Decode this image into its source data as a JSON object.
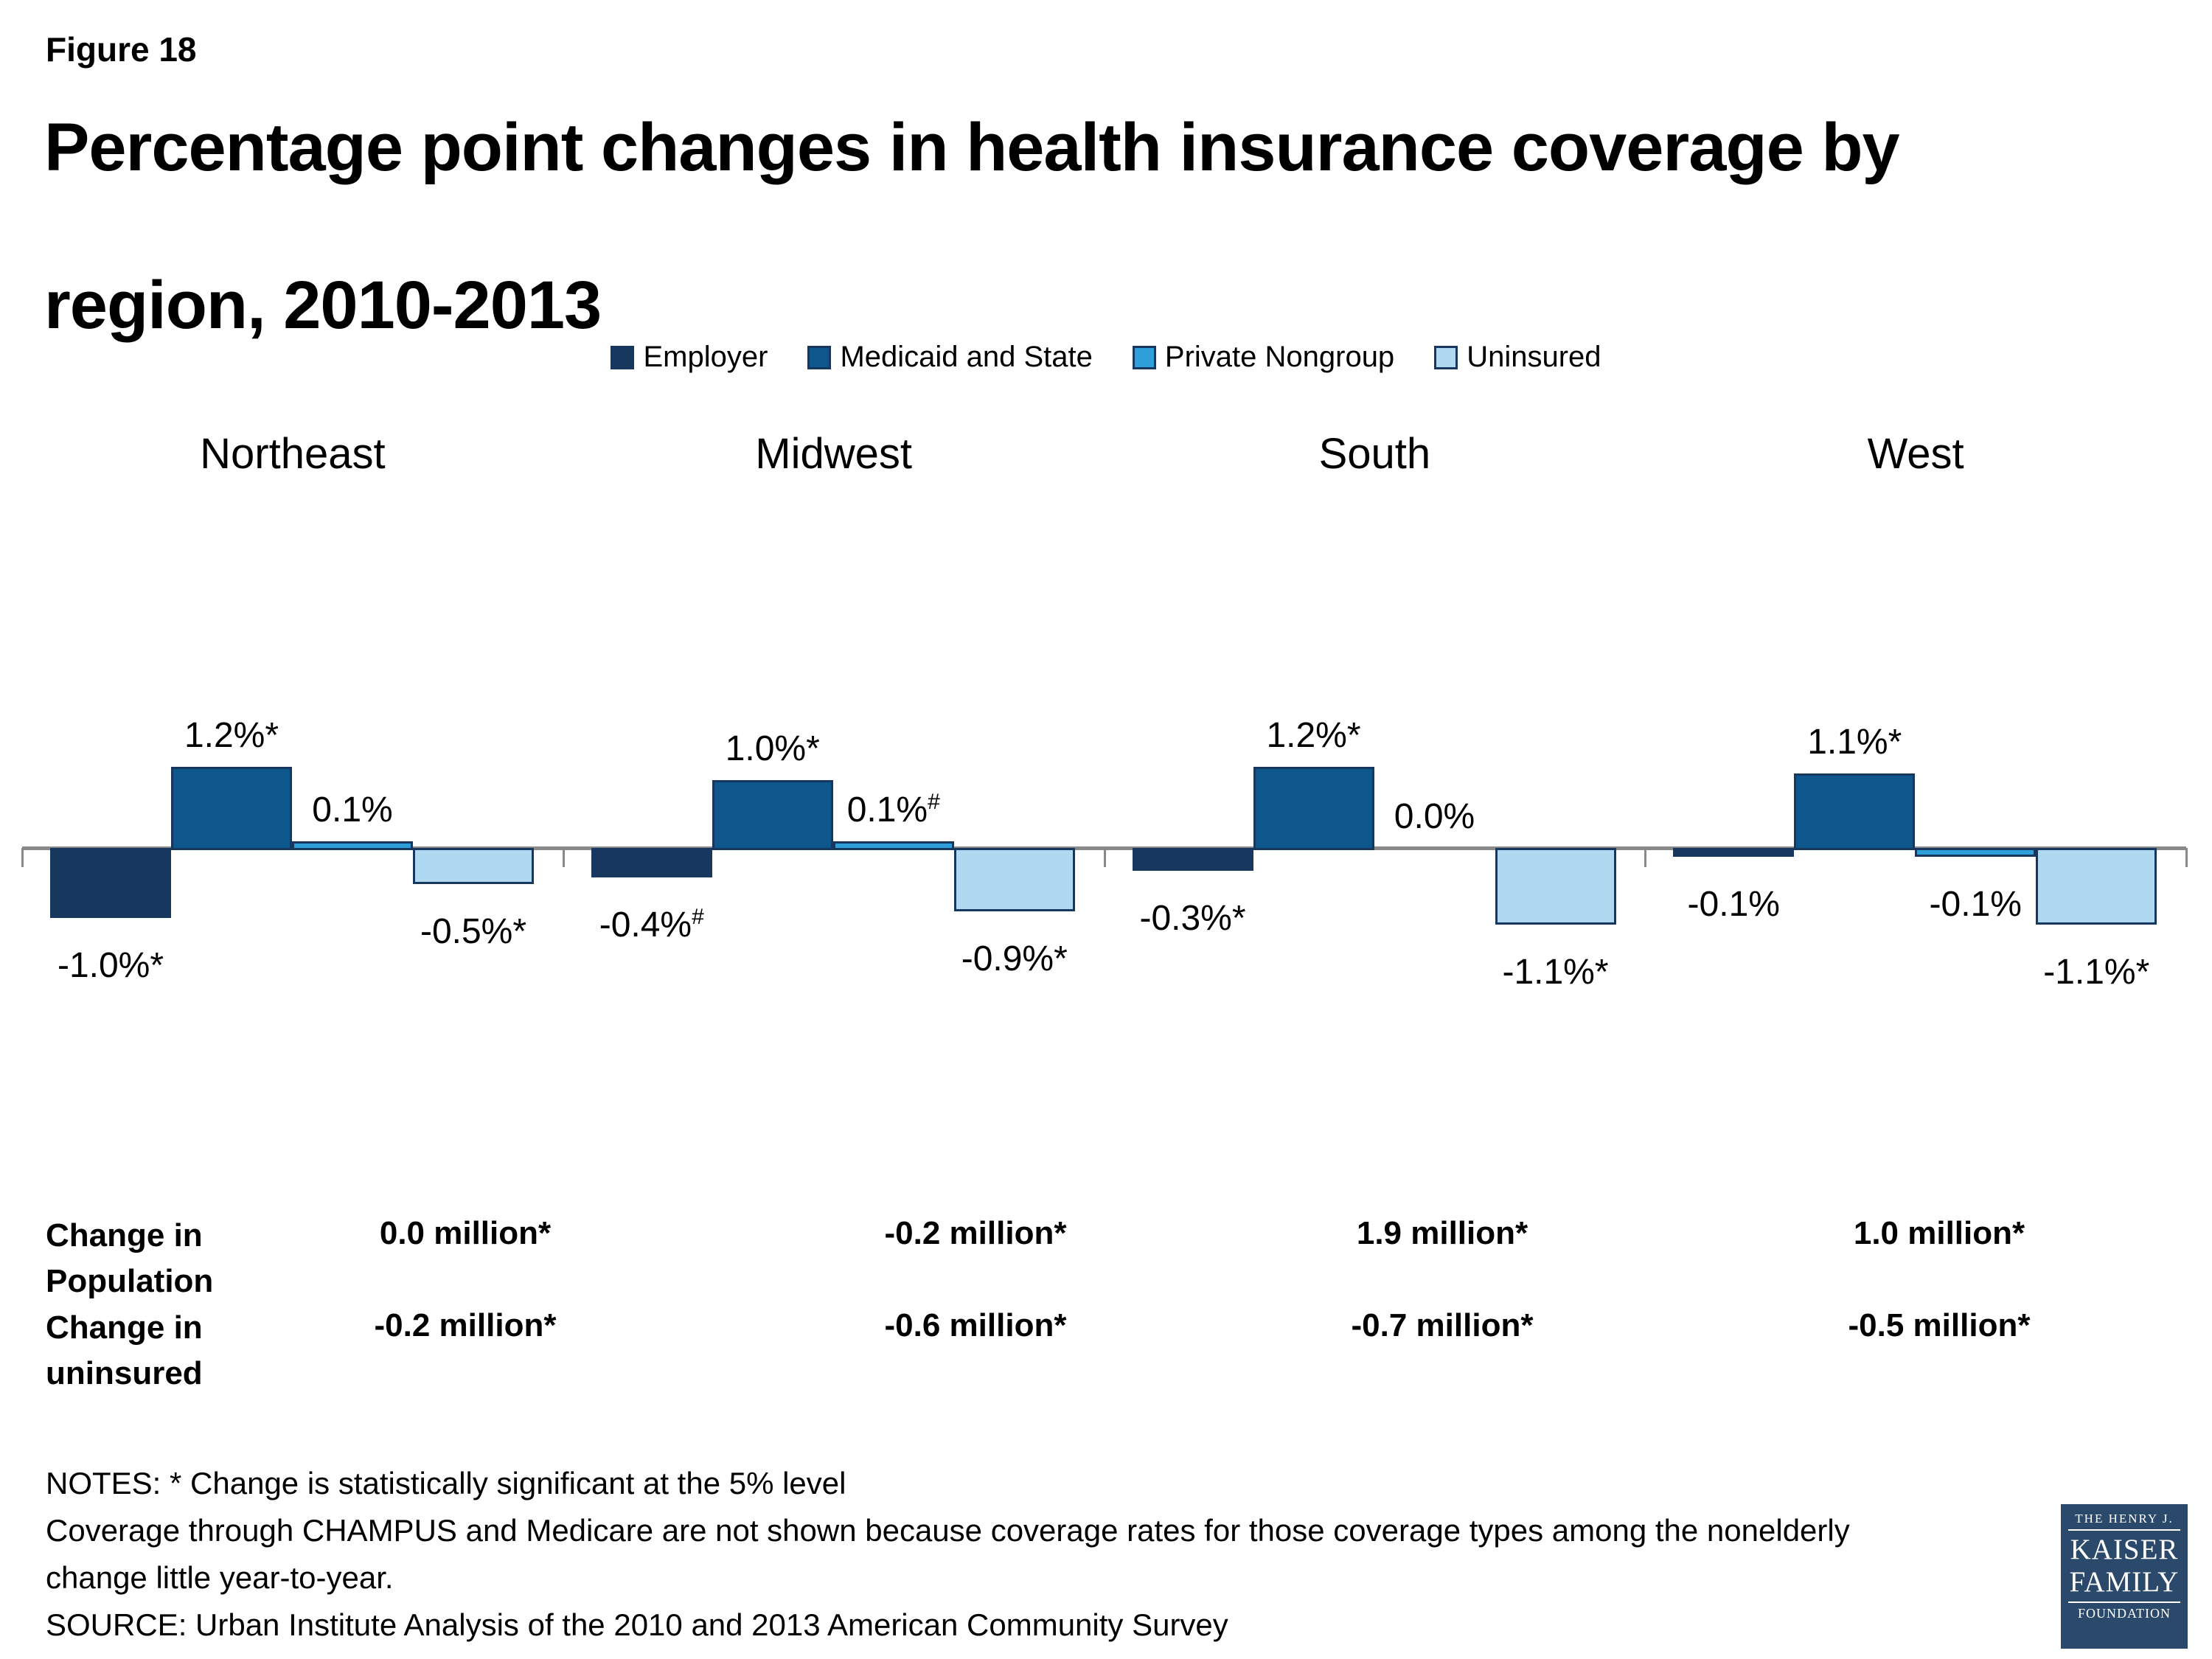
{
  "figure_label": "Figure 18",
  "title_line1": "Percentage point changes in health insurance coverage by",
  "title_line2": "region, 2010-2013",
  "colors": {
    "employer": "#17375E",
    "medicaid_and_state": "#0D578C",
    "private_nongroup": "#2F9FDA",
    "uninsured": "#AFD9F0",
    "bar_border": "#17375E",
    "axis": "#898989",
    "logo_background": "#2B4A6B"
  },
  "legend": [
    {
      "label": "Employer",
      "color": "#17375E"
    },
    {
      "label": "Medicaid and State",
      "color": "#0D578C"
    },
    {
      "label": "Private Nongroup",
      "color": "#2F9FDA"
    },
    {
      "label": "Uninsured",
      "color": "#AFD9F0"
    }
  ],
  "chart_data": {
    "type": "bar",
    "units": "percentage points",
    "categories": [
      "Northeast",
      "Midwest",
      "South",
      "West"
    ],
    "series_names": [
      "Employer",
      "Medicaid and State",
      "Private Nongroup",
      "Uninsured"
    ],
    "ylim": [
      -1.5,
      1.5
    ],
    "grid": false,
    "legend_position": "top",
    "groups": [
      {
        "region": "Northeast",
        "bars": [
          {
            "series": "Employer",
            "value": -1.0,
            "label": "-1.0%*",
            "sup": "",
            "color": "#17375E"
          },
          {
            "series": "Medicaid and State",
            "value": 1.2,
            "label": "1.2%*",
            "sup": "",
            "color": "#0D578C"
          },
          {
            "series": "Private Nongroup",
            "value": 0.1,
            "label": "0.1%",
            "sup": "",
            "color": "#2F9FDA"
          },
          {
            "series": "Uninsured",
            "value": -0.5,
            "label": "-0.5%*",
            "sup": "",
            "color": "#AFD9F0"
          }
        ]
      },
      {
        "region": "Midwest",
        "bars": [
          {
            "series": "Employer",
            "value": -0.4,
            "label": "-0.4%",
            "sup": "#",
            "color": "#17375E"
          },
          {
            "series": "Medicaid and State",
            "value": 1.0,
            "label": "1.0%*",
            "sup": "",
            "color": "#0D578C"
          },
          {
            "series": "Private Nongroup",
            "value": 0.1,
            "label": "0.1%",
            "sup": "#",
            "color": "#2F9FDA"
          },
          {
            "series": "Uninsured",
            "value": -0.9,
            "label": "-0.9%*",
            "sup": "",
            "color": "#AFD9F0"
          }
        ]
      },
      {
        "region": "South",
        "bars": [
          {
            "series": "Employer",
            "value": -0.3,
            "label": "-0.3%*",
            "sup": "",
            "color": "#17375E"
          },
          {
            "series": "Medicaid and State",
            "value": 1.2,
            "label": "1.2%*",
            "sup": "",
            "color": "#0D578C"
          },
          {
            "series": "Private Nongroup",
            "value": 0.0,
            "label": "0.0%",
            "sup": "",
            "color": "#2F9FDA"
          },
          {
            "series": "Uninsured",
            "value": -1.1,
            "label": "-1.1%*",
            "sup": "",
            "color": "#AFD9F0"
          }
        ]
      },
      {
        "region": "West",
        "bars": [
          {
            "series": "Employer",
            "value": -0.1,
            "label": "-0.1%",
            "sup": "",
            "color": "#17375E"
          },
          {
            "series": "Medicaid and State",
            "value": 1.1,
            "label": "1.1%*",
            "sup": "",
            "color": "#0D578C"
          },
          {
            "series": "Private Nongroup",
            "value": -0.1,
            "label": "-0.1%",
            "sup": "",
            "color": "#2F9FDA"
          },
          {
            "series": "Uninsured",
            "value": -1.1,
            "label": "-1.1%*",
            "sup": "",
            "color": "#AFD9F0"
          }
        ]
      }
    ]
  },
  "table": {
    "rows": [
      {
        "header_line1": "Change in",
        "header_line2": "Population",
        "values": [
          "0.0 million*",
          "-0.2 million*",
          "1.9 million*",
          "1.0 million*"
        ]
      },
      {
        "header_line1": "Change in",
        "header_line2": "uninsured",
        "values": [
          "-0.2 million*",
          "-0.6 million*",
          "-0.7 million*",
          "-0.5 million*"
        ]
      }
    ]
  },
  "notes_lines": [
    "NOTES: * Change is statistically significant at the 5% level",
    "Coverage through CHAMPUS and Medicare are not shown because coverage rates for those coverage types among the nonelderly",
    "change little year-to-year.",
    "SOURCE: Urban Institute Analysis of the 2010 and 2013 American Community Survey"
  ],
  "logo": {
    "line1": "THE HENRY J.",
    "line2": "KAISER",
    "line3": "FAMILY",
    "line4": "FOUNDATION"
  }
}
